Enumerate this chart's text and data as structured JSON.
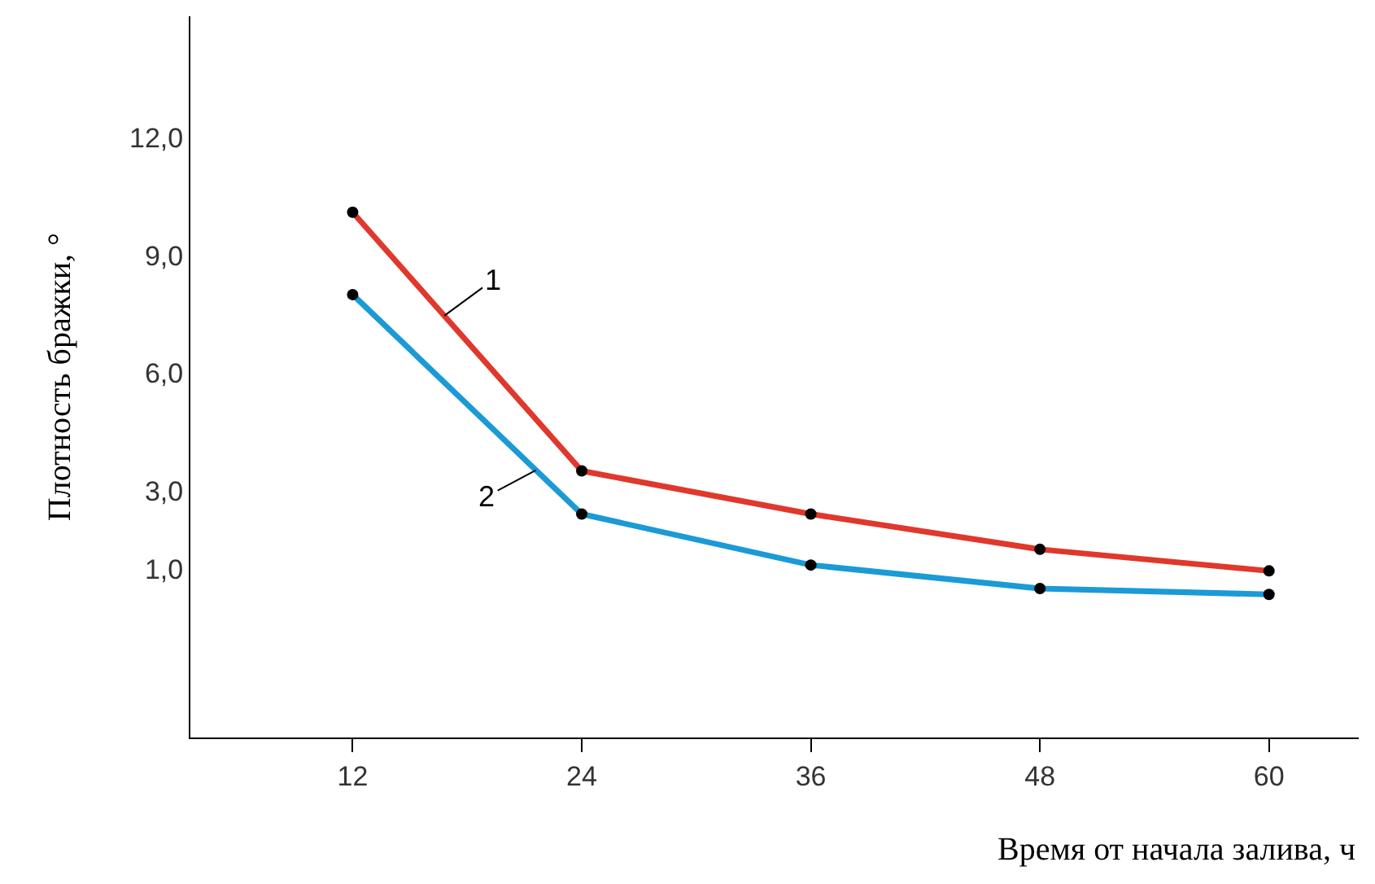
{
  "chart_data": {
    "type": "line",
    "xlabel": "Время от начала залива, ч",
    "ylabel": "Плотность бражки, °",
    "x": [
      12,
      24,
      36,
      48,
      60
    ],
    "series": [
      {
        "name": "1",
        "color": "#e0382c",
        "values": [
          10.1,
          3.5,
          2.4,
          1.5,
          0.95
        ]
      },
      {
        "name": "2",
        "color": "#1b9ad6",
        "values": [
          8.0,
          2.4,
          1.1,
          0.5,
          0.35
        ]
      }
    ],
    "xlim": [
      3.5,
      64.7
    ],
    "xticks": [
      12,
      24,
      36,
      48,
      60
    ],
    "ylim": [
      -3.3,
      15.1
    ],
    "yticks": [
      {
        "value": 1,
        "label": "1,0"
      },
      {
        "value": 3,
        "label": "3,0"
      },
      {
        "value": 6,
        "label": "6,0"
      },
      {
        "value": 9,
        "label": "9,0"
      },
      {
        "value": 12,
        "label": "12,0"
      }
    ],
    "marker": "circle",
    "line_style": "solid"
  }
}
